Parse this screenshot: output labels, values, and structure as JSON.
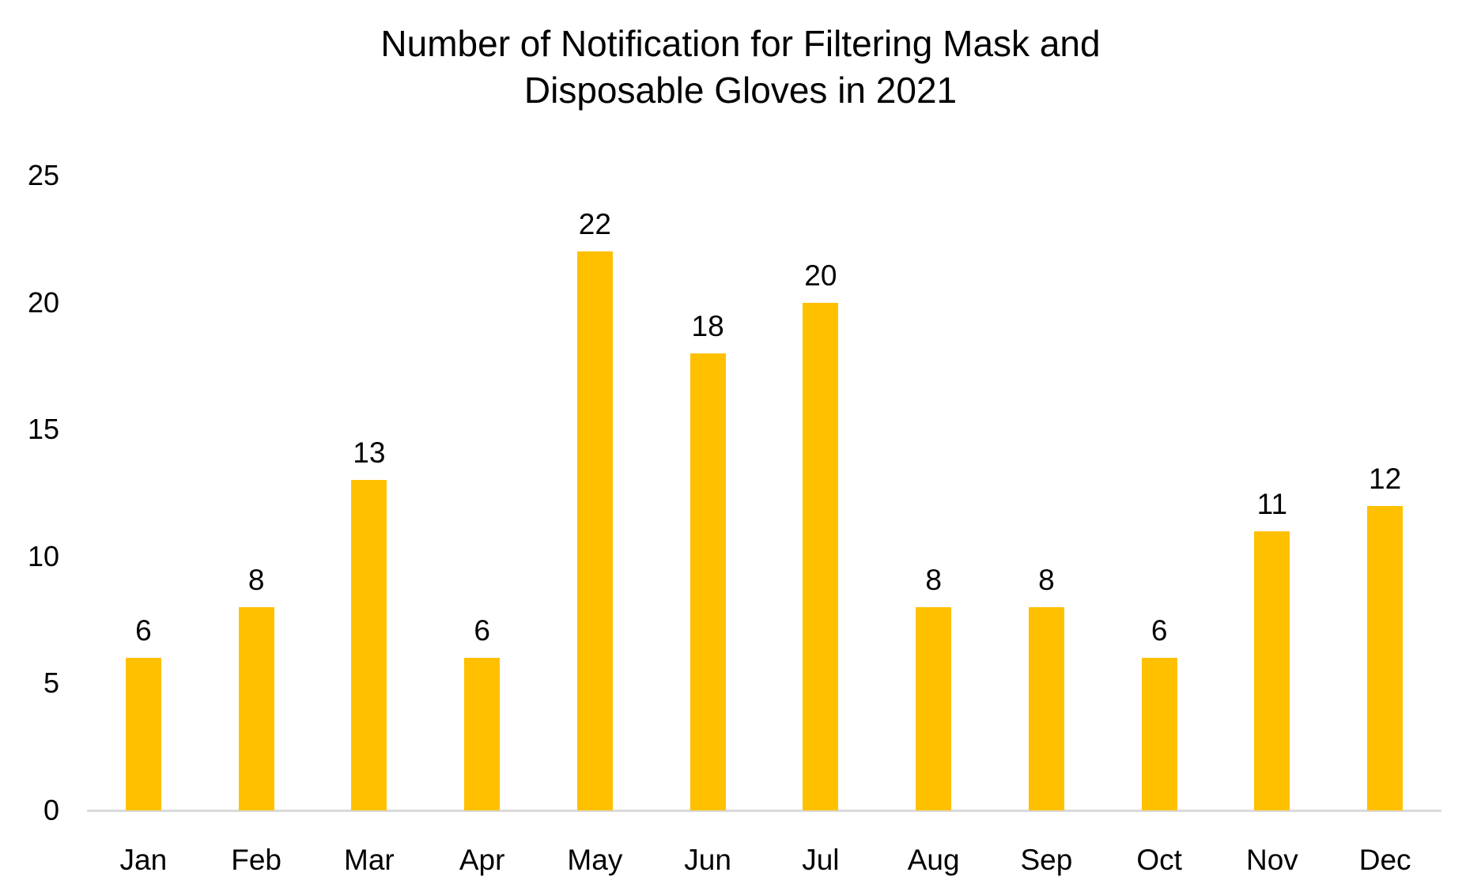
{
  "chart_data": {
    "type": "bar",
    "title": "Number of Notification for Filtering Mask and Disposable Gloves in 2021",
    "title_lines": [
      "Number of Notification for Filtering Mask and",
      "Disposable Gloves in 2021"
    ],
    "categories": [
      "Jan",
      "Feb",
      "Mar",
      "Apr",
      "May",
      "Jun",
      "Jul",
      "Aug",
      "Sep",
      "Oct",
      "Nov",
      "Dec"
    ],
    "values": [
      6,
      8,
      13,
      6,
      22,
      18,
      20,
      8,
      8,
      6,
      11,
      12
    ],
    "xlabel": "",
    "ylabel": "",
    "ylim": [
      0,
      25
    ],
    "yticks": [
      0,
      5,
      10,
      15,
      20,
      25
    ],
    "grid": false,
    "legend": false,
    "data_labels_visible": true,
    "colors": {
      "bar_fill": "#FFC000",
      "axis_line": "#D9D9D9",
      "text": "#000000",
      "background": "#FFFFFF"
    }
  }
}
